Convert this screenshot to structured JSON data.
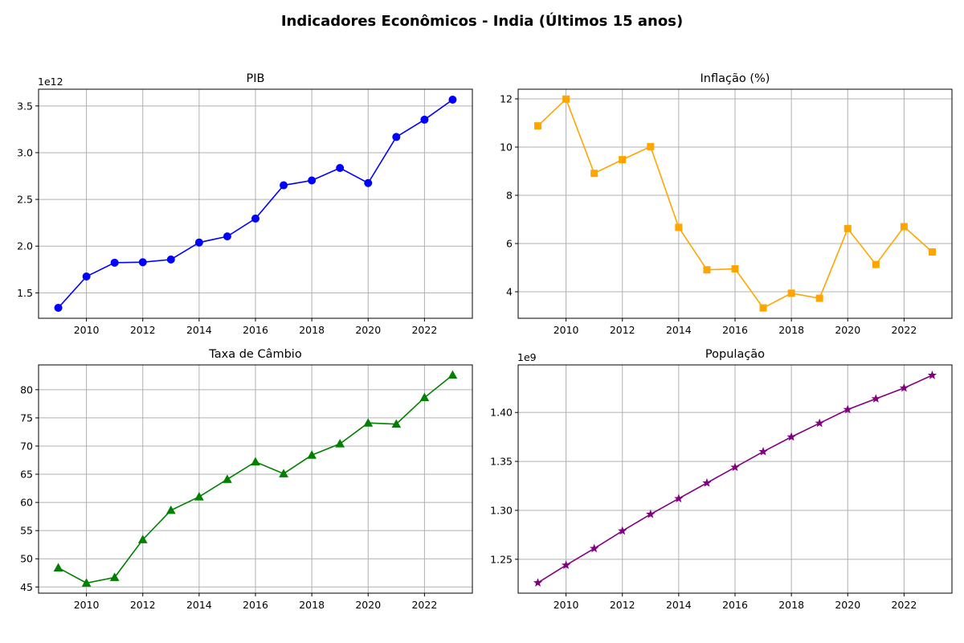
{
  "suptitle": "Indicadores Econômicos - India (Últimos 15 anos)",
  "chart_data": [
    {
      "type": "line",
      "title": "PIB",
      "offset_label": "1e12",
      "scale": 1000000000000.0,
      "marker": "circle",
      "color": "#0000ff",
      "x": [
        2009,
        2010,
        2011,
        2012,
        2013,
        2014,
        2015,
        2016,
        2017,
        2018,
        2019,
        2020,
        2021,
        2022,
        2023
      ],
      "values": [
        1.34,
        1.675,
        1.823,
        1.828,
        1.857,
        2.039,
        2.104,
        2.295,
        2.651,
        2.703,
        2.836,
        2.675,
        3.168,
        3.353,
        3.567
      ],
      "xticks": [
        2010,
        2012,
        2014,
        2016,
        2018,
        2020,
        2022
      ],
      "yticks": [
        1.5,
        2.0,
        2.5,
        3.0,
        3.5
      ],
      "ytick_labels": [
        "1.5",
        "2.0",
        "2.5",
        "3.0",
        "3.5"
      ],
      "xlim": [
        2008.3,
        2023.7
      ],
      "ylim": [
        1.228,
        3.679
      ],
      "grid": true
    },
    {
      "type": "line",
      "title": "Inflação (%)",
      "offset_label": "",
      "scale": 1,
      "marker": "square",
      "color": "#ffa500",
      "x": [
        2009,
        2010,
        2011,
        2012,
        2013,
        2014,
        2015,
        2016,
        2017,
        2018,
        2019,
        2020,
        2021,
        2022,
        2023
      ],
      "values": [
        10.88,
        11.99,
        8.91,
        9.48,
        10.02,
        6.67,
        4.91,
        4.95,
        3.33,
        3.94,
        3.73,
        6.62,
        5.13,
        6.7,
        5.65
      ],
      "xticks": [
        2010,
        2012,
        2014,
        2016,
        2018,
        2020,
        2022
      ],
      "yticks": [
        4,
        6,
        8,
        10,
        12
      ],
      "ytick_labels": [
        "4",
        "6",
        "8",
        "10",
        "12"
      ],
      "xlim": [
        2008.3,
        2023.7
      ],
      "ylim": [
        2.9,
        12.4
      ],
      "grid": true
    },
    {
      "type": "line",
      "title": "Taxa de Câmbio",
      "offset_label": "",
      "scale": 1,
      "marker": "triangle",
      "color": "#008000",
      "x": [
        2009,
        2010,
        2011,
        2012,
        2013,
        2014,
        2015,
        2016,
        2017,
        2018,
        2019,
        2020,
        2021,
        2022,
        2023
      ],
      "values": [
        48.4,
        45.7,
        46.7,
        53.4,
        58.6,
        61.0,
        64.1,
        67.2,
        65.1,
        68.4,
        70.4,
        74.1,
        73.9,
        78.6,
        82.6
      ],
      "xticks": [
        2010,
        2012,
        2014,
        2016,
        2018,
        2020,
        2022
      ],
      "yticks": [
        45,
        50,
        55,
        60,
        65,
        70,
        75,
        80
      ],
      "ytick_labels": [
        "45",
        "50",
        "55",
        "60",
        "65",
        "70",
        "75",
        "80"
      ],
      "xlim": [
        2008.3,
        2023.7
      ],
      "ylim": [
        43.9,
        84.4
      ],
      "grid": true
    },
    {
      "type": "line",
      "title": "População",
      "offset_label": "1e9",
      "scale": 1000000000.0,
      "marker": "star",
      "color": "#800080",
      "x": [
        2009,
        2010,
        2011,
        2012,
        2013,
        2014,
        2015,
        2016,
        2017,
        2018,
        2019,
        2020,
        2021,
        2022,
        2023
      ],
      "values": [
        1.226,
        1.244,
        1.261,
        1.279,
        1.296,
        1.312,
        1.328,
        1.344,
        1.36,
        1.375,
        1.389,
        1.403,
        1.414,
        1.425,
        1.438
      ],
      "xticks": [
        2010,
        2012,
        2014,
        2016,
        2018,
        2020,
        2022
      ],
      "yticks": [
        1.25,
        1.3,
        1.35,
        1.4
      ],
      "ytick_labels": [
        "1.25",
        "1.30",
        "1.35",
        "1.40"
      ],
      "xlim": [
        2008.3,
        2023.7
      ],
      "ylim": [
        1.2154,
        1.4486
      ],
      "grid": true
    }
  ]
}
